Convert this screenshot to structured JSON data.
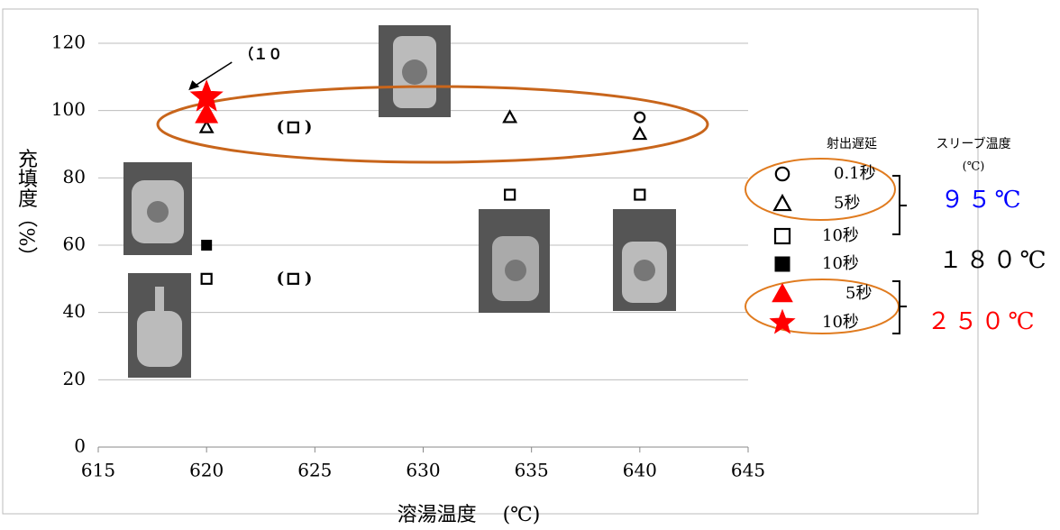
{
  "chart_data": {
    "type": "scatter",
    "xlabel": "溶湯温度　 (℃)",
    "ylabel": "充填度（%）",
    "xlim": [
      615,
      645
    ],
    "xticks": [
      615,
      620,
      625,
      630,
      635,
      640,
      645
    ],
    "ylim": [
      0,
      120
    ],
    "yticks": [
      0,
      20,
      40,
      60,
      80,
      100,
      120
    ],
    "grid": true,
    "series": [
      {
        "name": "0.1秒",
        "marker": "circle",
        "filled": false,
        "color": "#000000",
        "x": [
          640
        ],
        "values": [
          98
        ]
      },
      {
        "name": "5秒",
        "marker": "triangle",
        "filled": false,
        "color": "#000000",
        "x": [
          620,
          634,
          640
        ],
        "values": [
          95,
          98,
          93
        ]
      },
      {
        "name": "10秒",
        "marker": "square",
        "filled": false,
        "color": "#000000",
        "x": [
          620,
          624,
          624,
          634,
          640
        ],
        "values": [
          50,
          95,
          50,
          75,
          75
        ]
      },
      {
        "name": "10秒",
        "marker": "square",
        "filled": true,
        "color": "#000000",
        "x": [
          620
        ],
        "values": [
          60
        ]
      },
      {
        "name": "5秒",
        "marker": "triangle",
        "filled": true,
        "color": "#ff0000",
        "x": [
          620
        ],
        "values": [
          99
        ]
      },
      {
        "name": "10秒",
        "marker": "star",
        "filled": true,
        "color": "#ff0000",
        "x": [
          620
        ],
        "values": [
          104
        ]
      }
    ],
    "annotations": [
      {
        "text": "(",
        "x": 623.4,
        "y": 95
      },
      {
        "text": ")",
        "x": 624.7,
        "y": 95
      },
      {
        "text": "(",
        "x": 623.4,
        "y": 50
      },
      {
        "text": ")",
        "x": 624.7,
        "y": 50
      },
      {
        "text": "（１０",
        "x": 622.5,
        "y": 116.5
      }
    ],
    "legend": {
      "header_delay": "射出遅延",
      "header_sleeve": "スリーブ温度",
      "header_unit": "(℃)",
      "groups": [
        {
          "label": "９５℃",
          "color": "#0000ff"
        },
        {
          "label": "１８０℃",
          "color": "#000000"
        },
        {
          "label": "２５０℃",
          "color": "#ff0000"
        }
      ]
    }
  }
}
